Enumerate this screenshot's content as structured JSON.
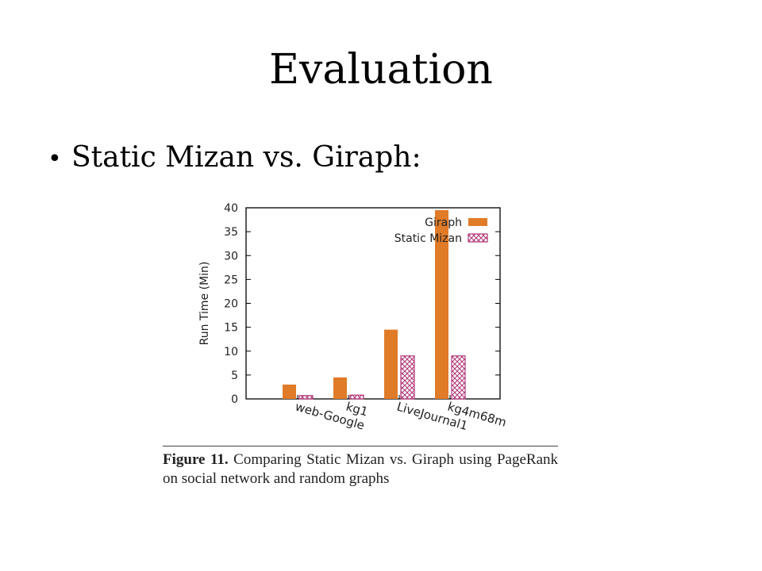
{
  "slide": {
    "title": "Evaluation",
    "bullet": "Static Mizan vs. Giraph:"
  },
  "chart_data": {
    "type": "bar",
    "categories": [
      "web-Google",
      "kg1",
      "LiveJournal1",
      "kg4m68m"
    ],
    "series": [
      {
        "name": "Giraph",
        "values": [
          3,
          4.5,
          14.5,
          39.5
        ],
        "color": "#e07b28",
        "pattern": "solid"
      },
      {
        "name": "Static Mizan",
        "values": [
          0.7,
          0.8,
          9,
          9
        ],
        "color": "#b23a78",
        "pattern": "crosshatch"
      }
    ],
    "ylabel": "Run Time (Min)",
    "ylim": [
      0,
      40
    ],
    "yticks": [
      0,
      5,
      10,
      15,
      20,
      25,
      30,
      35,
      40
    ],
    "grid": false,
    "legend_position": "top-right"
  },
  "caption": {
    "label": "Figure 11.",
    "text": "Comparing Static Mizan vs. Giraph using PageRank on social network and random graphs"
  }
}
